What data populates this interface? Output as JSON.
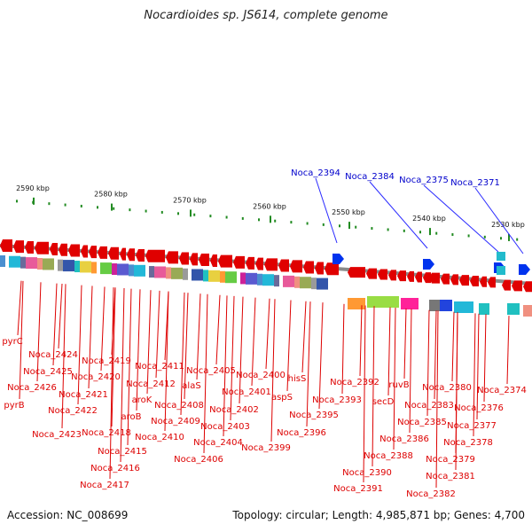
{
  "title": "Nocardioides sp. JS614, complete genome",
  "footer": {
    "accession": "Accession: NC_008699",
    "summary": "Topology: circular; Length: 4,985,871 bp; Genes: 4,700"
  },
  "colors": {
    "gene_label": "#dd0000",
    "highlight_label": "#0000cc",
    "backbone": "#888888",
    "tick": "#228b22"
  },
  "kbp_labels": [
    "2590 kbp",
    "2580 kbp",
    "2570 kbp",
    "2560 kbp",
    "2550 kbp",
    "2540 kbp",
    "2530 kbp"
  ],
  "highlight_genes": [
    "Noca_2394",
    "Noca_2384",
    "Noca_2375",
    "Noca_2371"
  ],
  "gene_labels": [
    "pyrC",
    "Noca_2424",
    "Noca_2425",
    "Noca_2426",
    "pyrB",
    "Noca_2419",
    "Noca_2420",
    "Noca_2421",
    "Noca_2422",
    "Noca_2423",
    "Noca_2418",
    "Noca_2415",
    "Noca_2416",
    "Noca_2417",
    "Noca_2411",
    "Noca_2412",
    "aroK",
    "aroB",
    "Noca_2410",
    "Noca_2409",
    "Noca_2408",
    "Noca_2405",
    "alaS",
    "Noca_2406",
    "Noca_2404",
    "Noca_2403",
    "Noca_2402",
    "Noca_2401",
    "Noca_2400",
    "aspS",
    "hisS",
    "Noca_2399",
    "Noca_2395",
    "Noca_2396",
    "Noca_2392",
    "Noca_2393",
    "Noca_2390",
    "Noca_2391",
    "Noca_2388",
    "secD",
    "ruvB",
    "Noca_2385",
    "Noca_2386",
    "Noca_2380",
    "Noca_2383",
    "Noca_2381",
    "Noca_2382",
    "Noca_2379",
    "Noca_2378",
    "Noca_2377",
    "Noca_2376",
    "Noca_2374"
  ]
}
